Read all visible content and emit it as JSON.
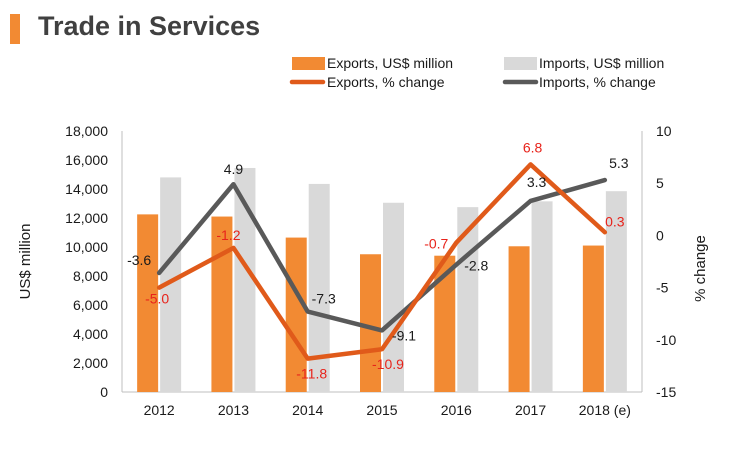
{
  "title": "Trade in Services",
  "colors": {
    "exports_bar": "#f28a33",
    "imports_bar": "#d9d9d9",
    "exports_line": "#e05a1a",
    "imports_line": "#595959",
    "exports_label": "#e8231b",
    "imports_label": "#1a1a1a",
    "accent": "#f28a33"
  },
  "chart_data": {
    "type": "bar",
    "categories": [
      "2012",
      "2013",
      "2014",
      "2015",
      "2016",
      "2017",
      "2018 (e)"
    ],
    "series": [
      {
        "name": "Exports, US$ million",
        "kind": "bar",
        "axis": "left",
        "values": [
          12250,
          12100,
          10650,
          9500,
          9400,
          10050,
          10100
        ]
      },
      {
        "name": "Imports, US$ million",
        "kind": "bar",
        "axis": "left",
        "values": [
          14800,
          15450,
          14350,
          13050,
          12750,
          13150,
          13850
        ]
      },
      {
        "name": "Exports, % change",
        "kind": "line",
        "axis": "right",
        "values": [
          -5.0,
          -1.2,
          -11.8,
          -10.9,
          -0.7,
          6.8,
          0.3
        ],
        "labels": [
          "-5.0",
          "-1.2",
          "-11.8",
          "-10.9",
          "-0.7",
          "6.8",
          "0.3"
        ]
      },
      {
        "name": "Imports, % change",
        "kind": "line",
        "axis": "right",
        "values": [
          -3.6,
          4.9,
          -7.3,
          -9.1,
          -2.8,
          3.3,
          5.3
        ],
        "labels": [
          "-3.6",
          "4.9",
          "-7.3",
          "-9.1",
          "-2.8",
          "3.3",
          "5.3"
        ]
      }
    ],
    "ylabel": "US$ million",
    "y2label": "% change",
    "ylim": [
      0,
      18000
    ],
    "yticks": [
      "0",
      "2,000",
      "4,000",
      "6,000",
      "8,000",
      "10,000",
      "12,000",
      "14,000",
      "16,000",
      "18,000"
    ],
    "y2lim": [
      -15,
      10
    ],
    "y2ticks": [
      "-15",
      "-10",
      "-5",
      "0",
      "5",
      "10"
    ],
    "legend_position": "top-right",
    "grid": false
  }
}
